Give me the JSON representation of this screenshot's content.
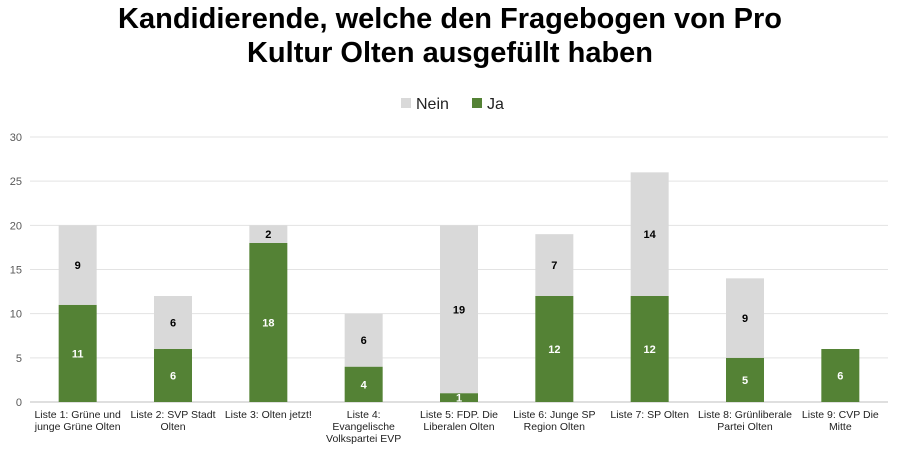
{
  "chart_data": {
    "type": "bar",
    "stacked": true,
    "title": "Kandidierende, welche den Fragebogen von Pro\nKultur Olten ausgefüllt haben",
    "categories": [
      "Liste 1: Grüne und junge Grüne Olten",
      "Liste 2: SVP Stadt Olten",
      "Liste 3: Olten jetzt!",
      "Liste 4: Evangelische Volkspartei EVP",
      "Liste 5: FDP. Die Liberalen Olten",
      "Liste 6: Junge SP Region Olten",
      "Liste 7: SP Olten",
      "Liste 8: Grünliberale Partei Olten",
      "Liste 9: CVP Die Mitte"
    ],
    "category_label_lines": [
      [
        "Liste 1: Grüne und",
        "junge Grüne Olten"
      ],
      [
        "Liste 2: SVP Stadt",
        "Olten"
      ],
      [
        "Liste 3: Olten jetzt!"
      ],
      [
        "Liste 4:",
        "Evangelische",
        "Volkspartei EVP"
      ],
      [
        "Liste 5: FDP. Die",
        "Liberalen Olten"
      ],
      [
        "Liste 6: Junge SP",
        "Region Olten"
      ],
      [
        "Liste 7: SP Olten"
      ],
      [
        "Liste 8: Grünliberale",
        "Partei Olten"
      ],
      [
        "Liste 9: CVP Die",
        "Mitte"
      ]
    ],
    "series": [
      {
        "name": "Ja",
        "values": [
          11,
          6,
          18,
          4,
          1,
          12,
          12,
          5,
          6
        ],
        "color": "#548235",
        "label_color": "#ffffff"
      },
      {
        "name": "Nein",
        "values": [
          9,
          6,
          2,
          6,
          19,
          7,
          14,
          9,
          0
        ],
        "color": "#d9d9d9",
        "label_color": "#000000"
      }
    ],
    "legend_order": [
      "Nein",
      "Ja"
    ],
    "legend_position": "top-center",
    "ylim": [
      0,
      30
    ],
    "yticks": [
      0,
      5,
      10,
      15,
      20,
      25,
      30
    ],
    "grid": true,
    "xlabel": "",
    "ylabel": ""
  }
}
